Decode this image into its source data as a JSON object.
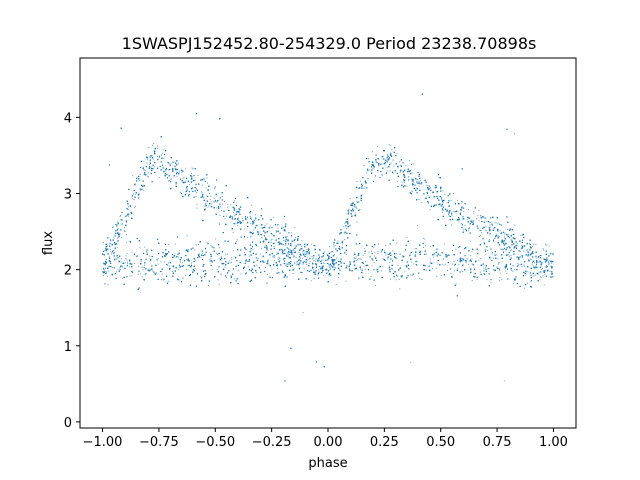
{
  "chart_data": {
    "type": "scatter",
    "title": "1SWASPJ152452.80-254329.0 Period 23238.70898s",
    "xlabel": "phase",
    "ylabel": "flux",
    "xlim": [
      -1.1,
      1.1
    ],
    "ylim": [
      -0.08,
      4.78
    ],
    "xticks": [
      -1.0,
      -0.75,
      -0.5,
      -0.25,
      0.0,
      0.25,
      0.5,
      0.75,
      1.0
    ],
    "xtick_labels": [
      "−1.00",
      "−0.75",
      "−0.50",
      "−0.25",
      "0.00",
      "0.25",
      "0.50",
      "0.75",
      "1.00"
    ],
    "yticks": [
      0,
      1,
      2,
      3,
      4
    ],
    "ytick_labels": [
      "0",
      "1",
      "2",
      "3",
      "4"
    ],
    "grid": false,
    "legend": "none",
    "marker_color": "#1f77b4",
    "series": [
      {
        "x_range": [
          -1.0,
          1.0
        ],
        "period_in_phase": 1.0,
        "points_per_period": 6000,
        "baseline_flux": 2.1,
        "baseline_scatter": 0.2,
        "profile": [
          {
            "phase": -1.0,
            "flux": 2.1
          },
          {
            "phase": -0.96,
            "flux": 2.25
          },
          {
            "phase": -0.9,
            "flux": 2.7
          },
          {
            "phase": -0.8,
            "flux": 3.4
          },
          {
            "phase": -0.75,
            "flux": 3.45
          },
          {
            "phase": -0.6,
            "flux": 3.1
          },
          {
            "phase": -0.45,
            "flux": 2.8
          },
          {
            "phase": -0.3,
            "flux": 2.5
          },
          {
            "phase": -0.15,
            "flux": 2.35
          },
          {
            "phase": -0.05,
            "flux": 2.05
          },
          {
            "phase": 0.0,
            "flux": 2.1
          }
        ],
        "outlier_range": [
          0.3,
          4.6
        ]
      }
    ]
  }
}
